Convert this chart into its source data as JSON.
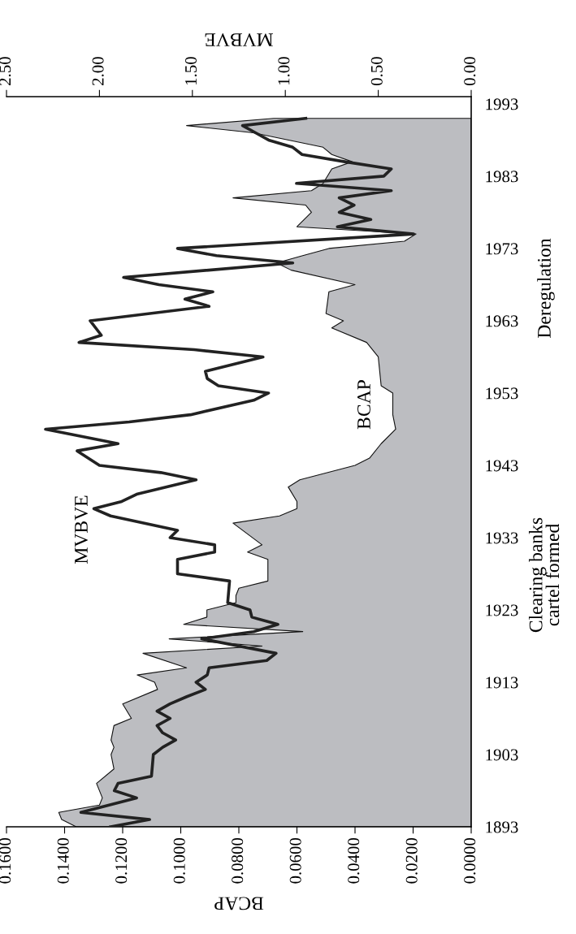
{
  "chart_data": {
    "type": "area",
    "orientation": "horizontal",
    "xlabel": "BCAP",
    "x2label": "MVBVE",
    "xlim": [
      0.16,
      0
    ],
    "xticks": [
      {
        "value": 0.16,
        "label": "0.1600"
      },
      {
        "value": 0.14,
        "label": "0.1400"
      },
      {
        "value": 0.12,
        "label": "0.1200"
      },
      {
        "value": 0.1,
        "label": "0.1000"
      },
      {
        "value": 0.08,
        "label": "0.0800"
      },
      {
        "value": 0.06,
        "label": "0.0600"
      },
      {
        "value": 0.04,
        "label": "0.0400"
      },
      {
        "value": 0.02,
        "label": "0.0200"
      },
      {
        "value": 0,
        "label": "0.0000"
      }
    ],
    "x2lim": [
      2.5,
      0
    ],
    "x2ticks": [
      {
        "value": 2.5,
        "label": "2.50"
      },
      {
        "value": 2.0,
        "label": "2.00"
      },
      {
        "value": 1.5,
        "label": "1.50"
      },
      {
        "value": 1.0,
        "label": "1.00"
      },
      {
        "value": 0.5,
        "label": "0.50"
      },
      {
        "value": 0,
        "label": "0.00"
      }
    ],
    "ylim": [
      1893,
      1994
    ],
    "yticks": [
      1893,
      1903,
      1913,
      1923,
      1933,
      1943,
      1953,
      1963,
      1973,
      1983,
      1993
    ],
    "grid": false,
    "legend": false,
    "series": [
      {
        "color": "#bcbdc1",
        "x": [
          1893,
          1894,
          1895,
          1896,
          1897,
          1899,
          1901,
          1903,
          1904,
          1905,
          1907,
          1908,
          1910,
          1912,
          1913,
          1914,
          1915,
          1917,
          1918,
          1919,
          1920,
          1921,
          1922,
          1923,
          1924,
          1925,
          1926,
          1927,
          1930,
          1931,
          1932,
          1935,
          1936,
          1937,
          1938,
          1940,
          1941,
          1943,
          1944,
          1946,
          1948,
          1950,
          1953,
          1954,
          1958,
          1960,
          1962,
          1963,
          1964,
          1967,
          1968,
          1970,
          1971,
          1972,
          1973,
          1974,
          1975,
          1976,
          1978,
          1979,
          1980,
          1981,
          1982,
          1984,
          1985,
          1986,
          1987,
          1989,
          1990,
          1991
        ],
        "values": [
          0.136,
          0.141,
          0.142,
          0.128,
          0.127,
          0.129,
          0.123,
          0.124,
          0.123,
          0.124,
          0.123,
          0.117,
          0.12,
          0.108,
          0.109,
          0.115,
          0.098,
          0.113,
          0.072,
          0.104,
          0.058,
          0.099,
          0.091,
          0.091,
          0.081,
          0.081,
          0.08,
          0.07,
          0.07,
          0.077,
          0.072,
          0.082,
          0.066,
          0.06,
          0.06,
          0.063,
          0.059,
          0.04,
          0.035,
          0.031,
          0.026,
          0.027,
          0.027,
          0.031,
          0.032,
          0.036,
          0.048,
          0.044,
          0.05,
          0.049,
          0.04,
          0.062,
          0.067,
          0.058,
          0.049,
          0.023,
          0.019,
          0.06,
          0.055,
          0.057,
          0.082,
          0.055,
          0.051,
          0.048,
          0.041,
          0.048,
          0.051,
          0.075,
          0.098,
          0.068
        ]
      },
      {
        "type": "line",
        "axis": "x2",
        "color": "#222222",
        "x": [
          1893,
          1894,
          1895,
          1897,
          1898,
          1899,
          1900,
          1903,
          1904,
          1905,
          1906,
          1907,
          1908,
          1909,
          1910,
          1911,
          1912,
          1913,
          1914,
          1915,
          1916,
          1917,
          1919,
          1920,
          1921,
          1922,
          1923,
          1924,
          1927,
          1928,
          1930,
          1931,
          1932,
          1933,
          1934,
          1936,
          1937,
          1938,
          1939,
          1941,
          1942,
          1943,
          1945,
          1946,
          1948,
          1949,
          1950,
          1952,
          1953,
          1954,
          1955,
          1956,
          1958,
          1959,
          1960,
          1961,
          1963,
          1965,
          1966,
          1967,
          1968,
          1969,
          1971,
          1972,
          1973,
          1975,
          1976,
          1977,
          1978,
          1979,
          1980,
          1981,
          1982,
          1983,
          1984,
          1985,
          1986,
          1987,
          1988,
          1989,
          1990,
          1991
        ],
        "values": [
          1.94,
          1.73,
          2.1,
          1.8,
          1.92,
          1.9,
          1.72,
          1.71,
          1.66,
          1.59,
          1.66,
          1.69,
          1.62,
          1.69,
          1.62,
          1.53,
          1.43,
          1.48,
          1.42,
          1.41,
          1.1,
          1.05,
          1.45,
          1.17,
          1.04,
          1.18,
          1.19,
          1.31,
          1.3,
          1.58,
          1.58,
          1.38,
          1.38,
          1.62,
          1.58,
          1.94,
          2.03,
          1.88,
          1.8,
          1.48,
          1.67,
          2.0,
          2.12,
          1.9,
          2.29,
          1.84,
          1.51,
          1.17,
          1.09,
          1.36,
          1.42,
          1.43,
          1.12,
          1.49,
          2.11,
          1.99,
          2.05,
          1.41,
          1.54,
          1.39,
          1.68,
          1.87,
          0.96,
          1.37,
          1.58,
          0.31,
          0.72,
          0.54,
          0.71,
          0.63,
          0.71,
          0.43,
          0.94,
          0.47,
          0.43,
          0.68,
          0.91,
          0.96,
          1.09,
          1.16,
          1.23,
          0.89
        ]
      }
    ],
    "annotations": [
      "MVBVE",
      "BCAP",
      "Clearing banks\ncartel formed",
      "Deregulation"
    ]
  }
}
